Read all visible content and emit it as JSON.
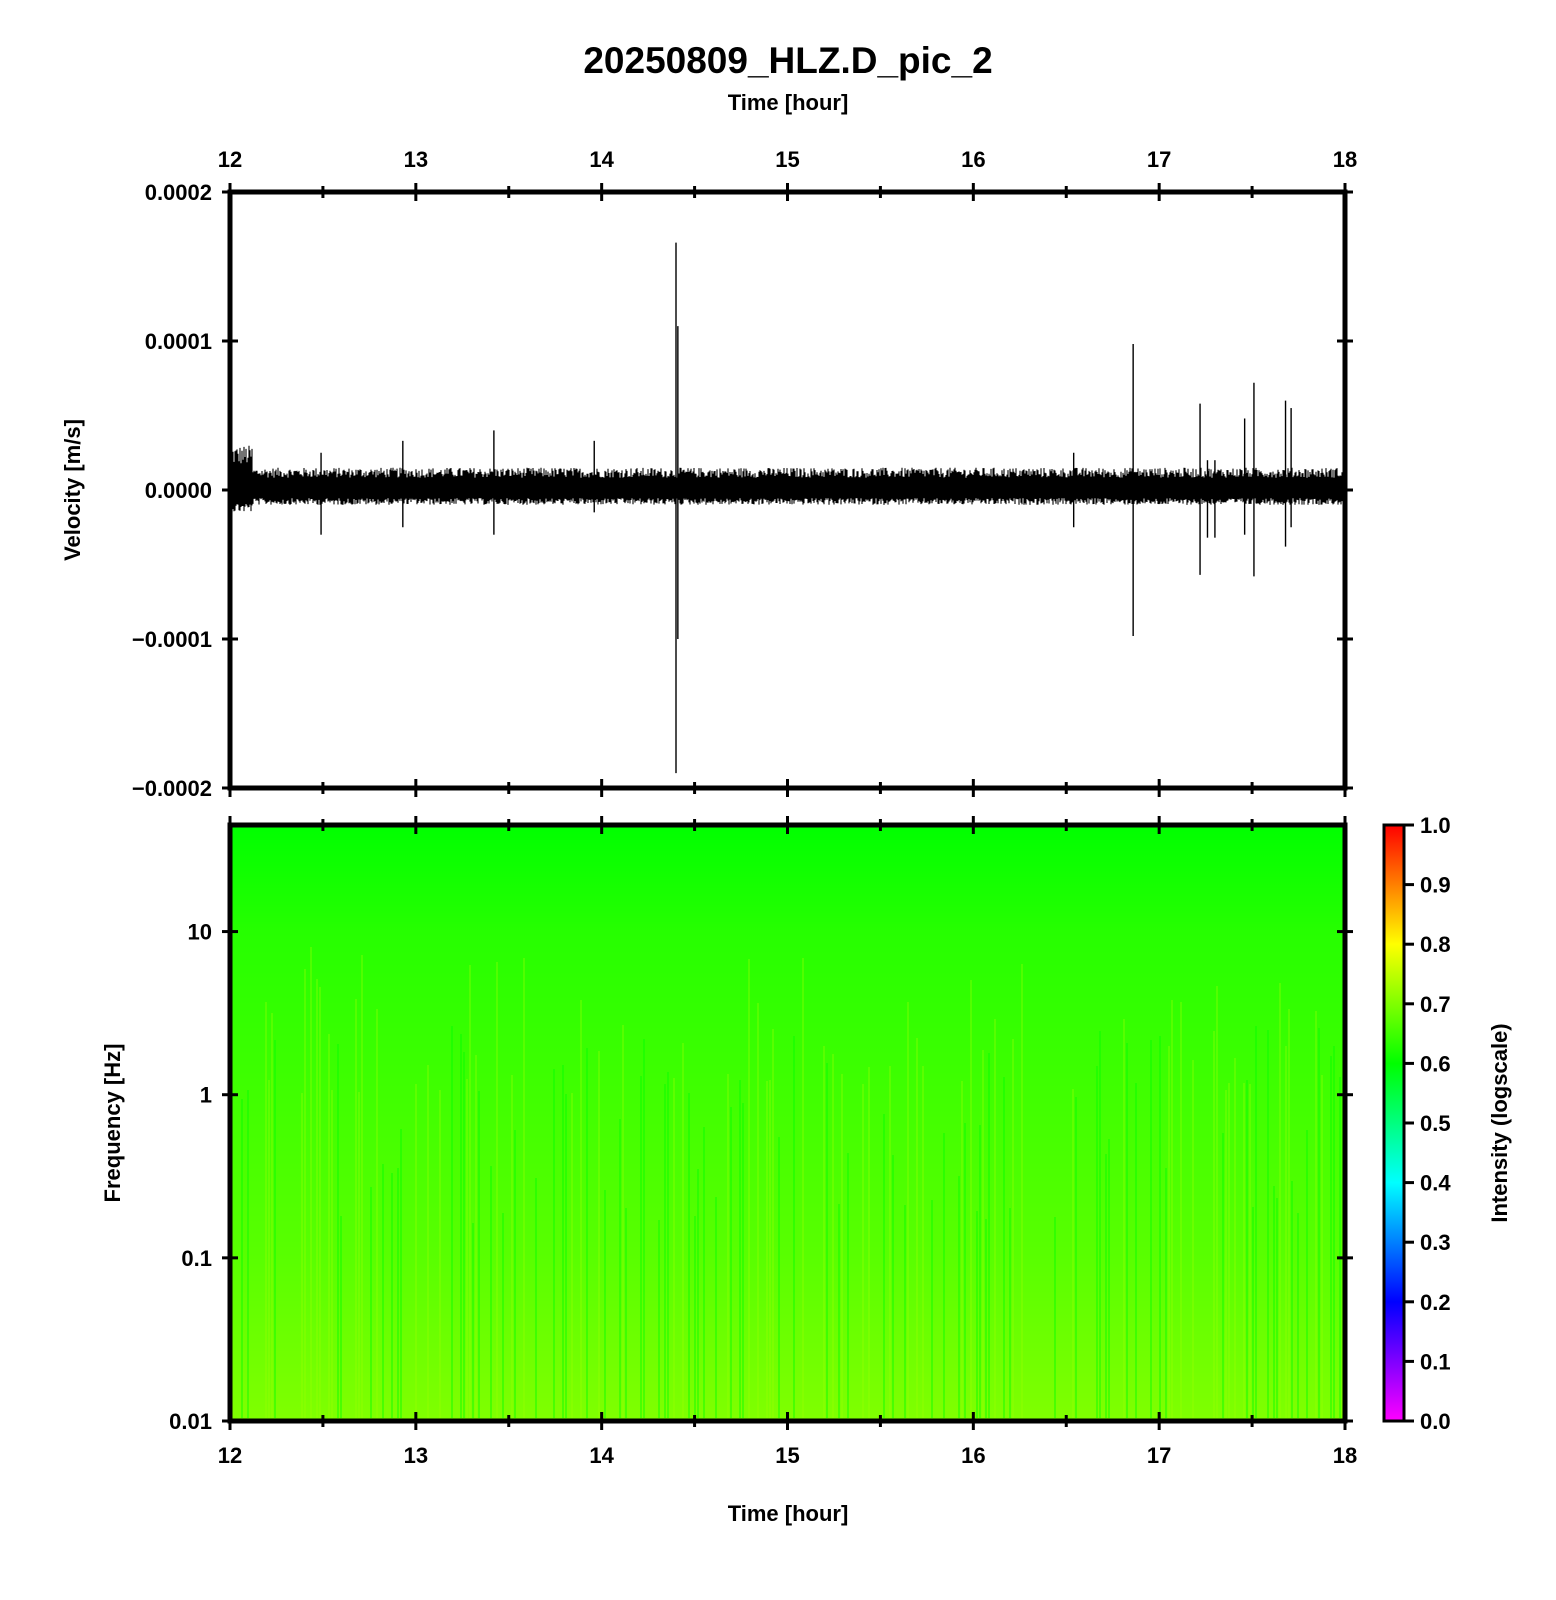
{
  "title": "20250809_HLZ.D_pic_2",
  "top_axis": {
    "label": "Time [hour]",
    "ticks": [
      "12",
      "13",
      "14",
      "15",
      "16",
      "17",
      "18"
    ]
  },
  "bottom_axis": {
    "label": "Time [hour]",
    "ticks": [
      "12",
      "13",
      "14",
      "15",
      "16",
      "17",
      "18"
    ]
  },
  "chart_data": [
    {
      "type": "line",
      "panel": "waveform",
      "title": "20250809_HLZ.D_pic_2",
      "xlabel": "Time [hour]",
      "ylabel": "Velocity [m/s]",
      "xlim": [
        12,
        18
      ],
      "ylim": [
        -0.0002,
        0.0002
      ],
      "x_ticks": [
        "12",
        "13",
        "14",
        "15",
        "16",
        "17",
        "18"
      ],
      "y_ticks": [
        "0.0002",
        "0.0001",
        "0.0000",
        "−0.0001",
        "−0.0002"
      ],
      "background_noise": {
        "x_range": [
          12,
          18
        ],
        "upper": 1.5e-05,
        "lower": -1e-05,
        "early_segment": {
          "x_range": [
            12,
            12.12
          ],
          "upper": 3e-05,
          "lower": -1.5e-05
        }
      },
      "spikes": [
        {
          "x": 12.49,
          "max": 2.5e-05,
          "min": -3e-05
        },
        {
          "x": 12.93,
          "max": 3.3e-05,
          "min": -2.5e-05
        },
        {
          "x": 13.42,
          "max": 4e-05,
          "min": -3e-05
        },
        {
          "x": 13.96,
          "max": 3.3e-05,
          "min": -1.5e-05
        },
        {
          "x": 14.4,
          "max": 0.000166,
          "min": -0.00019
        },
        {
          "x": 14.41,
          "max": 0.00011,
          "min": -0.0001
        },
        {
          "x": 16.54,
          "max": 2.5e-05,
          "min": -2.5e-05
        },
        {
          "x": 16.86,
          "max": 9.8e-05,
          "min": -9.8e-05
        },
        {
          "x": 17.22,
          "max": 5.8e-05,
          "min": -5.7e-05
        },
        {
          "x": 17.26,
          "max": 2e-05,
          "min": -3.2e-05
        },
        {
          "x": 17.3,
          "max": 2e-05,
          "min": -3.2e-05
        },
        {
          "x": 17.46,
          "max": 4.8e-05,
          "min": -3e-05
        },
        {
          "x": 17.51,
          "max": 7.2e-05,
          "min": -5.8e-05
        },
        {
          "x": 17.68,
          "max": 6e-05,
          "min": -3.8e-05
        },
        {
          "x": 17.71,
          "max": 5.5e-05,
          "min": -2.5e-05
        }
      ]
    },
    {
      "type": "heatmap",
      "panel": "spectrogram",
      "xlabel": "Time [hour]",
      "ylabel": "Frequency [Hz]",
      "xlim": [
        12,
        18
      ],
      "ylim": [
        0.01,
        45
      ],
      "log_y": true,
      "x_ticks": [
        "12",
        "13",
        "14",
        "15",
        "16",
        "17",
        "18"
      ],
      "y_ticks": [
        "10",
        "1",
        "0.1",
        "0.01"
      ],
      "intensity_profile": [
        {
          "frequency": 45,
          "intensity": 0.6
        },
        {
          "frequency": 10,
          "intensity": 0.63
        },
        {
          "frequency": 1,
          "intensity": 0.65
        },
        {
          "frequency": 0.1,
          "intensity": 0.67
        },
        {
          "frequency": 0.01,
          "intensity": 0.7
        }
      ],
      "colorbar": {
        "label": "Intensity (logscale)",
        "range": [
          0,
          1
        ],
        "ticks": [
          "1.0",
          "0.9",
          "0.8",
          "0.7",
          "0.6",
          "0.5",
          "0.4",
          "0.3",
          "0.2",
          "0.1",
          "0.0"
        ],
        "colors": [
          "#ff00ff",
          "#0000ff",
          "#00ffff",
          "#00ff00",
          "#ffff00",
          "#ff0000"
        ]
      }
    }
  ]
}
